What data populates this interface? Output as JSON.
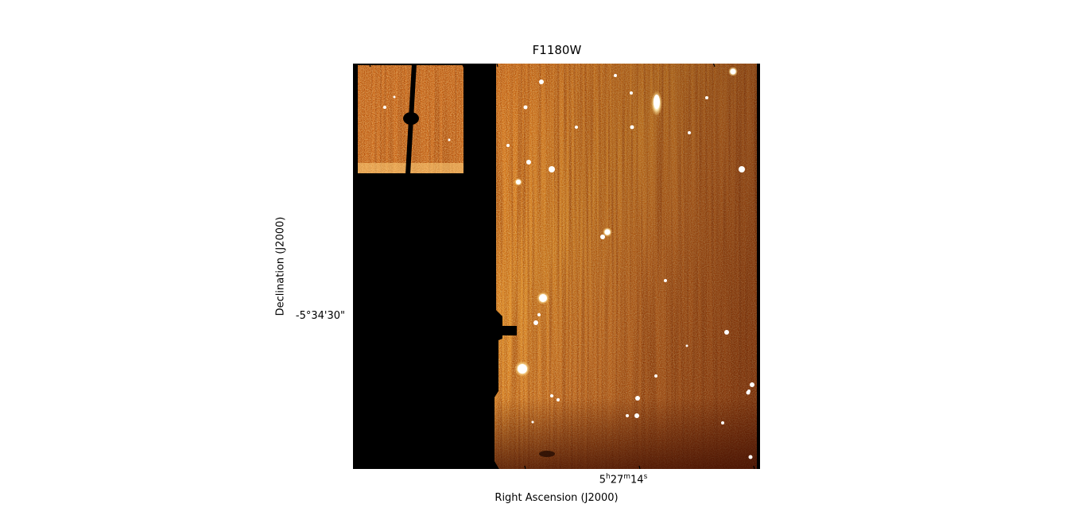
{
  "figure": {
    "title": "F1180W",
    "xlabel": "Right Ascension (J2000)",
    "ylabel": "Declination (J2000)",
    "y_tick_label": "-5°34'30\"",
    "x_tick_label": {
      "h": "5",
      "h_unit": "h",
      "m": "27",
      "m_unit": "m",
      "s": "14",
      "s_unit": "s"
    }
  },
  "colors": {
    "background": "#000000",
    "low": "#5a0f00",
    "mid": "#c8500a",
    "high": "#ffe9a0",
    "star": "#ffffff"
  },
  "colormap": "afmhot"
}
